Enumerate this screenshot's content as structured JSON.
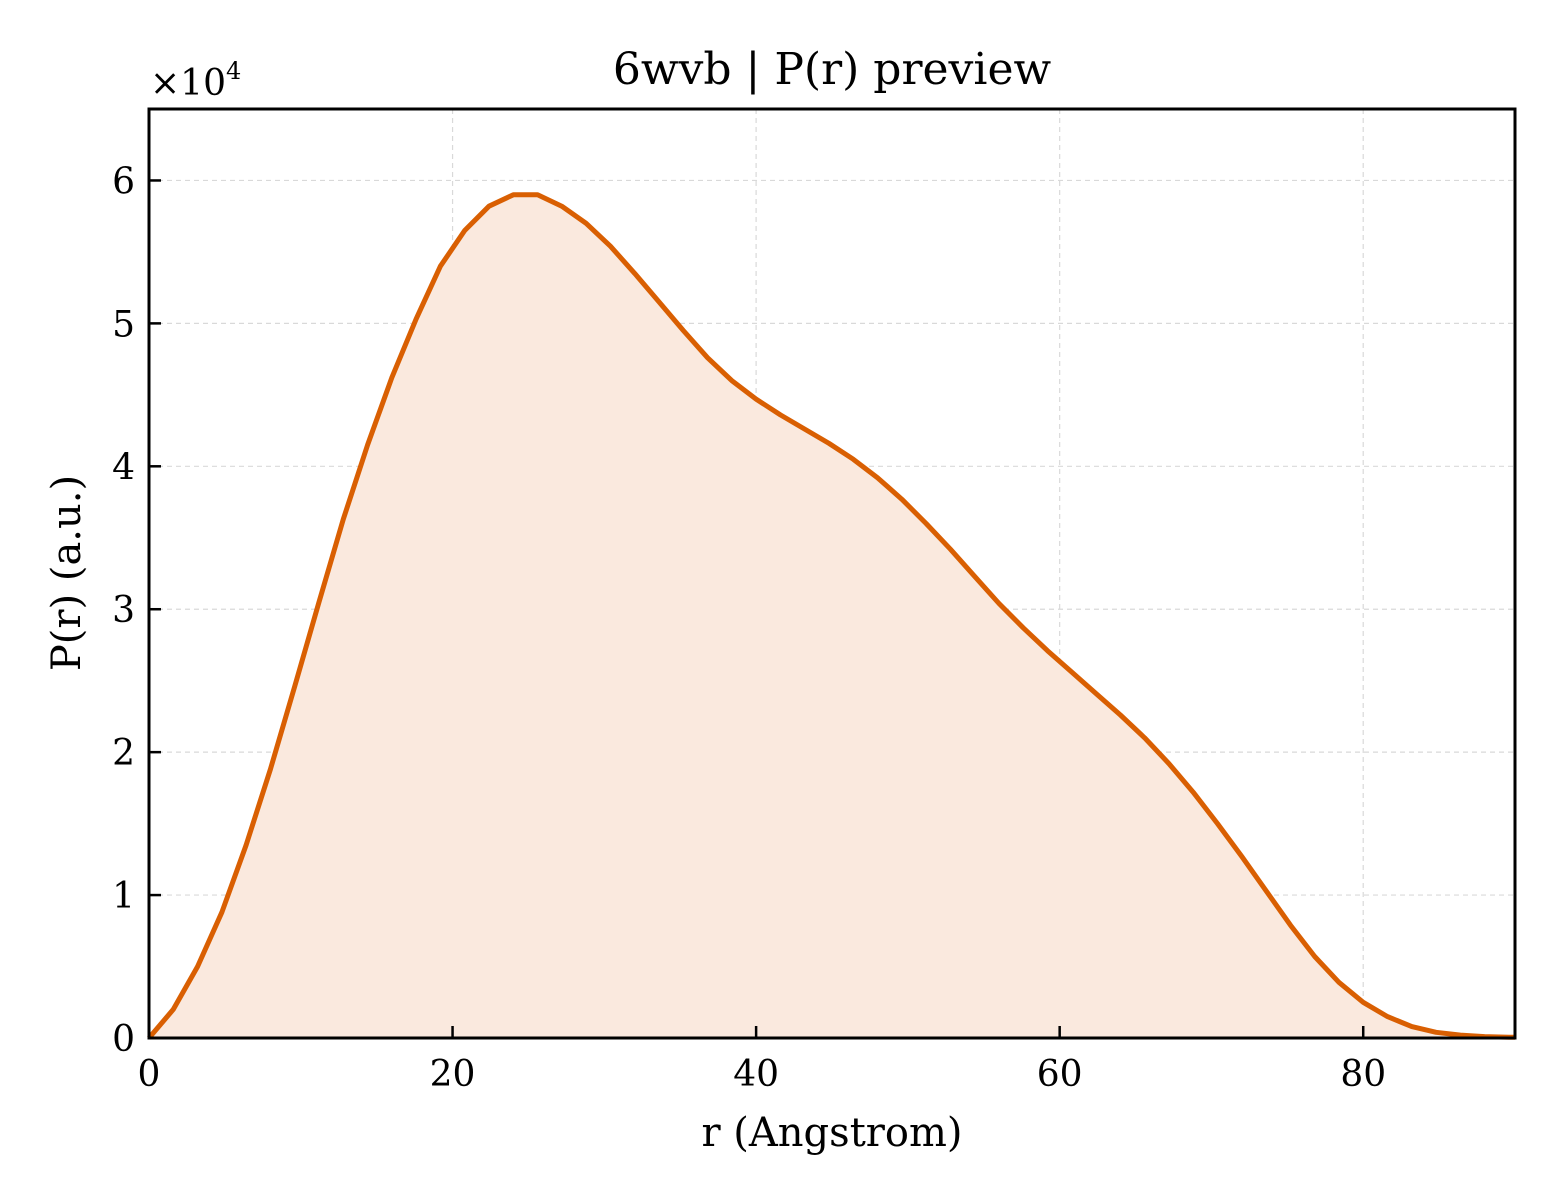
{
  "chart_data": {
    "type": "area",
    "title": "6wvb | P(r) preview",
    "xlabel": "r (Angstrom)",
    "ylabel": "P(r) (a.u.)",
    "y_multiplier_base": "×10",
    "y_multiplier_exp": "4",
    "xlim": [
      0,
      90
    ],
    "ylim": [
      0,
      6.5
    ],
    "xticks": [
      0,
      20,
      40,
      60,
      80
    ],
    "yticks": [
      0,
      1,
      2,
      3,
      4,
      5,
      6
    ],
    "grid": true,
    "line_color": "#d95f02",
    "fill_color": "#fae9de",
    "series": [
      {
        "x": [
          0,
          1.6,
          3.2,
          4.8,
          6.4,
          8.0,
          9.6,
          11.2,
          12.8,
          14.4,
          16.0,
          17.6,
          19.2,
          20.8,
          22.4,
          24.0,
          25.6,
          27.2,
          28.8,
          30.4,
          32.0,
          33.6,
          35.2,
          36.8,
          38.4,
          40.0,
          41.6,
          43.2,
          44.8,
          46.4,
          48.0,
          49.6,
          51.2,
          52.8,
          54.4,
          56.0,
          57.6,
          59.2,
          60.8,
          62.4,
          64.0,
          65.6,
          67.2,
          68.8,
          70.4,
          72.0,
          73.6,
          75.2,
          76.8,
          78.4,
          80.0,
          81.6,
          83.2,
          84.8,
          86.4,
          88.0,
          89.6,
          90.0
        ],
        "values": [
          0,
          0.2,
          0.5,
          0.88,
          1.35,
          1.88,
          2.46,
          3.05,
          3.63,
          4.15,
          4.62,
          5.03,
          5.4,
          5.65,
          5.82,
          5.9,
          5.9,
          5.82,
          5.7,
          5.54,
          5.35,
          5.15,
          4.95,
          4.76,
          4.6,
          4.47,
          4.36,
          4.26,
          4.16,
          4.05,
          3.92,
          3.77,
          3.6,
          3.42,
          3.23,
          3.04,
          2.87,
          2.71,
          2.56,
          2.41,
          2.26,
          2.1,
          1.92,
          1.72,
          1.5,
          1.27,
          1.03,
          0.79,
          0.57,
          0.39,
          0.25,
          0.15,
          0.08,
          0.04,
          0.02,
          0.01,
          0.005,
          0.005
        ]
      }
    ]
  }
}
